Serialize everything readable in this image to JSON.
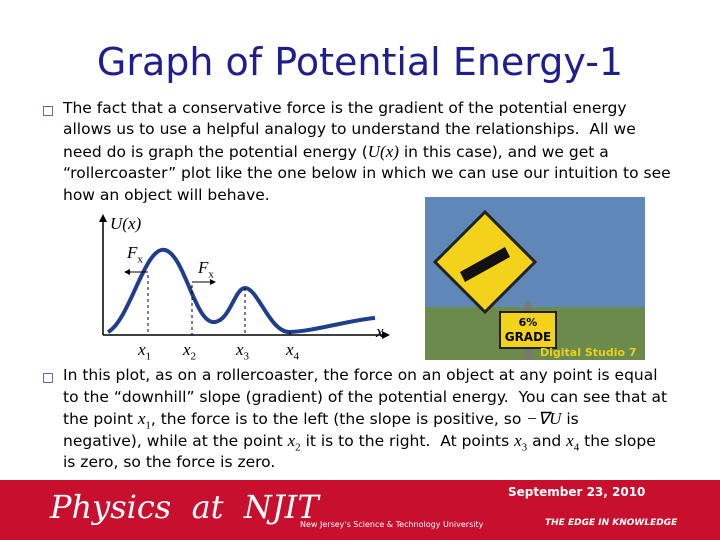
{
  "title": "Graph of Potential Energy-1",
  "bullets": [
    {
      "lines": [
        [
          "The fact that a conservative force is the gradient of the potential energy"
        ],
        [
          "allows us to use a helpful analogy to understand the relationships.  All we"
        ],
        [
          "need do is graph the potential energy (",
          {
            "math": "U(x)"
          },
          " in this case), and we get a"
        ],
        [
          "“rollercoaster” plot like the one below in which we can use our intuition to see"
        ],
        [
          "how an object will behave."
        ]
      ]
    },
    {
      "lines": [
        [
          "In this plot, as on a rollercoaster, the force on an object at any point is equal"
        ],
        [
          "to the “downhill” slope (gradient) of the potential energy.  You can see that at"
        ],
        [
          "the point ",
          {
            "math": "x",
            "sub": "1"
          },
          ", the force is to the left (the slope is positive, so ",
          {
            "math": "−∇U"
          },
          " is"
        ],
        [
          "negative), while at the point ",
          {
            "math": "x",
            "sub": "2"
          },
          " it is to the right.  At points ",
          {
            "math": "x",
            "sub": "3"
          },
          " and ",
          {
            "math": "x",
            "sub": "4"
          },
          " the slope"
        ],
        [
          "is zero, so the force is zero."
        ]
      ]
    }
  ],
  "graph": {
    "y_label": "U(x)",
    "x_label": "x",
    "force_labels": [
      {
        "math": "F",
        "sub": "x"
      },
      {
        "math": "F",
        "sub": "x"
      }
    ],
    "points": [
      {
        "math": "x",
        "sub": "1"
      },
      {
        "math": "x",
        "sub": "2"
      },
      {
        "math": "x",
        "sub": "3"
      },
      {
        "math": "x",
        "sub": "4"
      }
    ]
  },
  "sign": {
    "line1": "6%",
    "line2": "GRADE",
    "credit": "Digital Studio 7"
  },
  "footer": {
    "date": "September 23, 2010",
    "brand": "Physics  at  NJIT",
    "tagline": "New Jersey's Science & Technology University",
    "motto": "THE EDGE IN KNOWLEDGE"
  }
}
